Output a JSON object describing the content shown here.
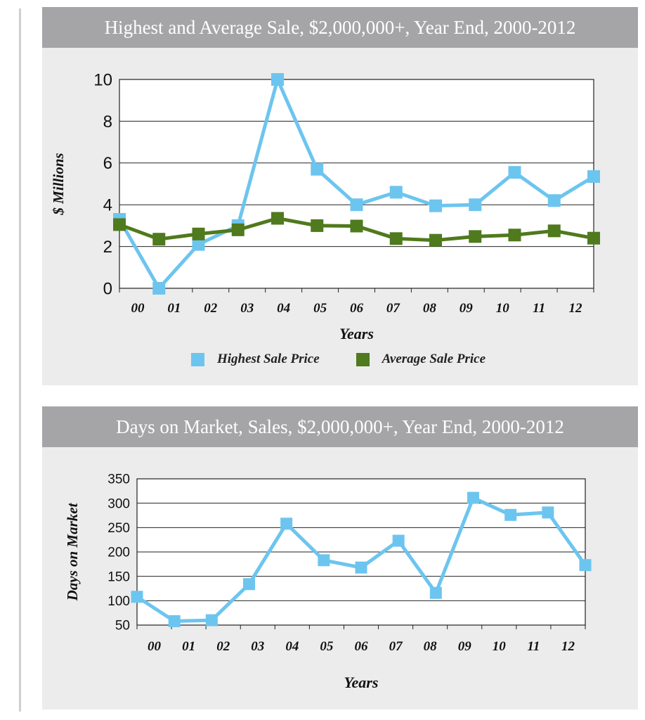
{
  "charts": {
    "top": {
      "title": "Highest and Average Sale, $2,000,000+, Year End, 2000-2012",
      "ylabel": "$ Millions",
      "xlabel": "Years",
      "legend": [
        "Highest Sale Price",
        "Average Sale Price"
      ]
    },
    "bottom": {
      "title": "Days on Market, Sales, $2,000,000+, Year End, 2000-2012",
      "ylabel": "Days on Market",
      "xlabel": "Years"
    }
  },
  "chart_data": [
    {
      "type": "line",
      "title": "Highest and Average Sale, $2,000,000+, Year End, 2000-2012",
      "categories": [
        "00",
        "01",
        "02",
        "03",
        "04",
        "05",
        "06",
        "07",
        "08",
        "09",
        "10",
        "11",
        "12"
      ],
      "xlabel": "Years",
      "ylabel": "$ Millions",
      "ylim": [
        0,
        10
      ],
      "yticks": [
        0,
        2,
        4,
        6,
        8,
        10
      ],
      "grid": true,
      "legend_position": "bottom",
      "series": [
        {
          "name": "Highest Sale Price",
          "color": "#6cc5ef",
          "values": [
            3.3,
            0.0,
            2.1,
            3.0,
            10.0,
            5.7,
            4.0,
            4.6,
            3.95,
            4.0,
            5.55,
            4.2,
            5.35
          ]
        },
        {
          "name": "Average Sale Price",
          "color": "#4f7a1d",
          "values": [
            3.05,
            2.35,
            2.6,
            2.8,
            3.35,
            3.0,
            2.98,
            2.38,
            2.3,
            2.48,
            2.55,
            2.75,
            2.4
          ]
        }
      ]
    },
    {
      "type": "line",
      "title": "Days on Market, Sales, $2,000,000+, Year End, 2000-2012",
      "categories": [
        "00",
        "01",
        "02",
        "03",
        "04",
        "05",
        "06",
        "07",
        "08",
        "09",
        "10",
        "11",
        "12"
      ],
      "xlabel": "Years",
      "ylabel": "Days on Market",
      "ylim": [
        50,
        350
      ],
      "yticks": [
        50,
        100,
        150,
        200,
        250,
        300,
        350
      ],
      "grid": true,
      "series": [
        {
          "color": "#6cc5ef",
          "values": [
            108,
            58,
            60,
            134,
            258,
            183,
            168,
            223,
            116,
            311,
            276,
            281,
            173
          ]
        }
      ]
    }
  ]
}
